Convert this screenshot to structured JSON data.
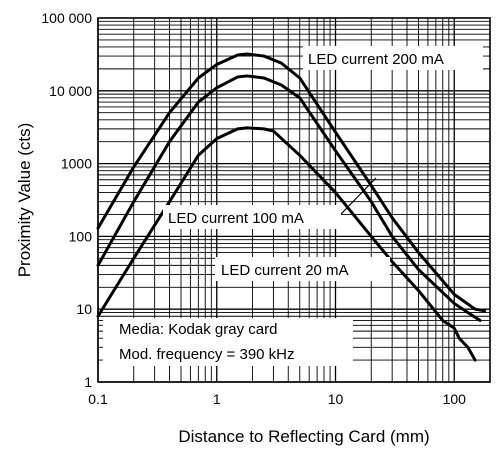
{
  "chart_data": {
    "type": "line",
    "xlabel": "Distance to Reflecting Card (mm)",
    "ylabel": "Proximity Value (cts)",
    "xscale": "log",
    "yscale": "log",
    "xlim": [
      0.1,
      200
    ],
    "ylim": [
      1,
      100000
    ],
    "grid": true,
    "x_ticks": [
      {
        "value": 0.1,
        "label": "0.1"
      },
      {
        "value": 1,
        "label": "1"
      },
      {
        "value": 10,
        "label": "10"
      },
      {
        "value": 100,
        "label": "100"
      }
    ],
    "y_ticks": [
      {
        "value": 1,
        "label": "1"
      },
      {
        "value": 10,
        "label": "10"
      },
      {
        "value": 100,
        "label": "100"
      },
      {
        "value": 1000,
        "label": "1000"
      },
      {
        "value": 10000,
        "label": "10 000"
      },
      {
        "value": 100000,
        "label": "100 000"
      }
    ],
    "series": [
      {
        "name": "LED current 200 mA",
        "points": [
          [
            0.1,
            130
          ],
          [
            0.2,
            900
          ],
          [
            0.4,
            5000
          ],
          [
            0.7,
            15000
          ],
          [
            1,
            23000
          ],
          [
            1.5,
            31000
          ],
          [
            1.8,
            32000
          ],
          [
            2.5,
            30000
          ],
          [
            3.5,
            24000
          ],
          [
            5,
            15000
          ],
          [
            10,
            2700
          ],
          [
            20,
            500
          ],
          [
            30,
            180
          ],
          [
            50,
            60
          ],
          [
            100,
            16
          ],
          [
            150,
            10
          ],
          [
            180,
            9.5
          ]
        ]
      },
      {
        "name": "LED current 100 mA",
        "points": [
          [
            0.1,
            40
          ],
          [
            0.2,
            300
          ],
          [
            0.4,
            2000
          ],
          [
            0.7,
            7000
          ],
          [
            1,
            11000
          ],
          [
            1.5,
            15500
          ],
          [
            1.8,
            16000
          ],
          [
            2.5,
            15000
          ],
          [
            3.5,
            12000
          ],
          [
            5,
            8000
          ],
          [
            10,
            1500
          ],
          [
            20,
            300
          ],
          [
            30,
            100
          ],
          [
            50,
            35
          ],
          [
            100,
            12
          ],
          [
            130,
            9
          ],
          [
            165,
            7
          ]
        ]
      },
      {
        "name": "LED current 20 mA",
        "points": [
          [
            0.1,
            8
          ],
          [
            0.2,
            50
          ],
          [
            0.4,
            300
          ],
          [
            0.7,
            1300
          ],
          [
            1,
            2200
          ],
          [
            1.5,
            3000
          ],
          [
            1.8,
            3100
          ],
          [
            2.5,
            3000
          ],
          [
            3,
            2800
          ],
          [
            5,
            1300
          ],
          [
            10,
            400
          ],
          [
            20,
            100
          ],
          [
            30,
            45
          ],
          [
            50,
            18
          ],
          [
            80,
            7
          ],
          [
            100,
            5.5
          ],
          [
            110,
            4
          ],
          [
            130,
            3
          ],
          [
            150,
            2
          ]
        ]
      }
    ],
    "annotations": [
      "Media: Kodak gray card",
      "Mod. frequency = 390 kHz"
    ]
  }
}
